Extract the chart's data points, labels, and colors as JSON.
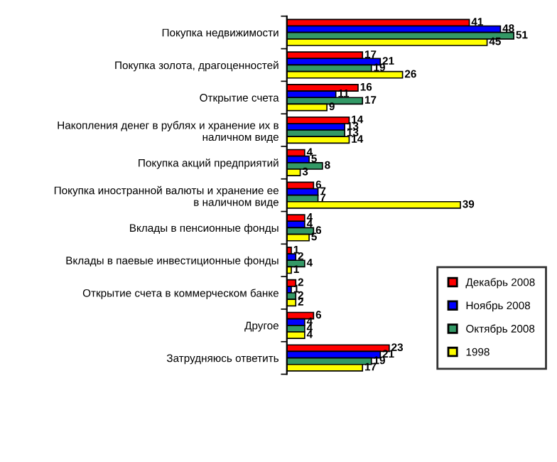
{
  "chart_data": {
    "type": "bar",
    "orientation": "horizontal",
    "categories": [
      "Покупка недвижимости",
      "Покупка золота, драгоценностей",
      "Открытие счета",
      "Накопления денег в рублях и хранение их в\nналичном виде",
      "Покупка акций предприятий",
      "Покупка иностранной валюты и хранение ее\nв наличном виде",
      "Вклады в пенсионные фонды",
      "Вклады в паевые инвестиционные фонды",
      "Открытие счета в коммерческом банке",
      "Другое",
      "Затрудняюсь ответить"
    ],
    "series": [
      {
        "name": "Декабрь 2008",
        "color": "#ff0000",
        "values": [
          41,
          17,
          16,
          14,
          4,
          6,
          4,
          1,
          2,
          6,
          23
        ]
      },
      {
        "name": "Ноябрь 2008",
        "color": "#0000ff",
        "values": [
          48,
          21,
          11,
          13,
          5,
          7,
          4,
          2,
          1,
          4,
          21
        ]
      },
      {
        "name": "Октябрь 2008",
        "color": "#339966",
        "values": [
          51,
          19,
          17,
          13,
          8,
          7,
          6,
          4,
          2,
          4,
          19
        ]
      },
      {
        "name": "1998",
        "color": "#ffff00",
        "values": [
          45,
          26,
          9,
          14,
          3,
          39,
          5,
          1,
          2,
          4,
          17
        ]
      }
    ],
    "data_labels": true,
    "legend": "bottom right",
    "grid": false,
    "tick_labels": "y"
  }
}
